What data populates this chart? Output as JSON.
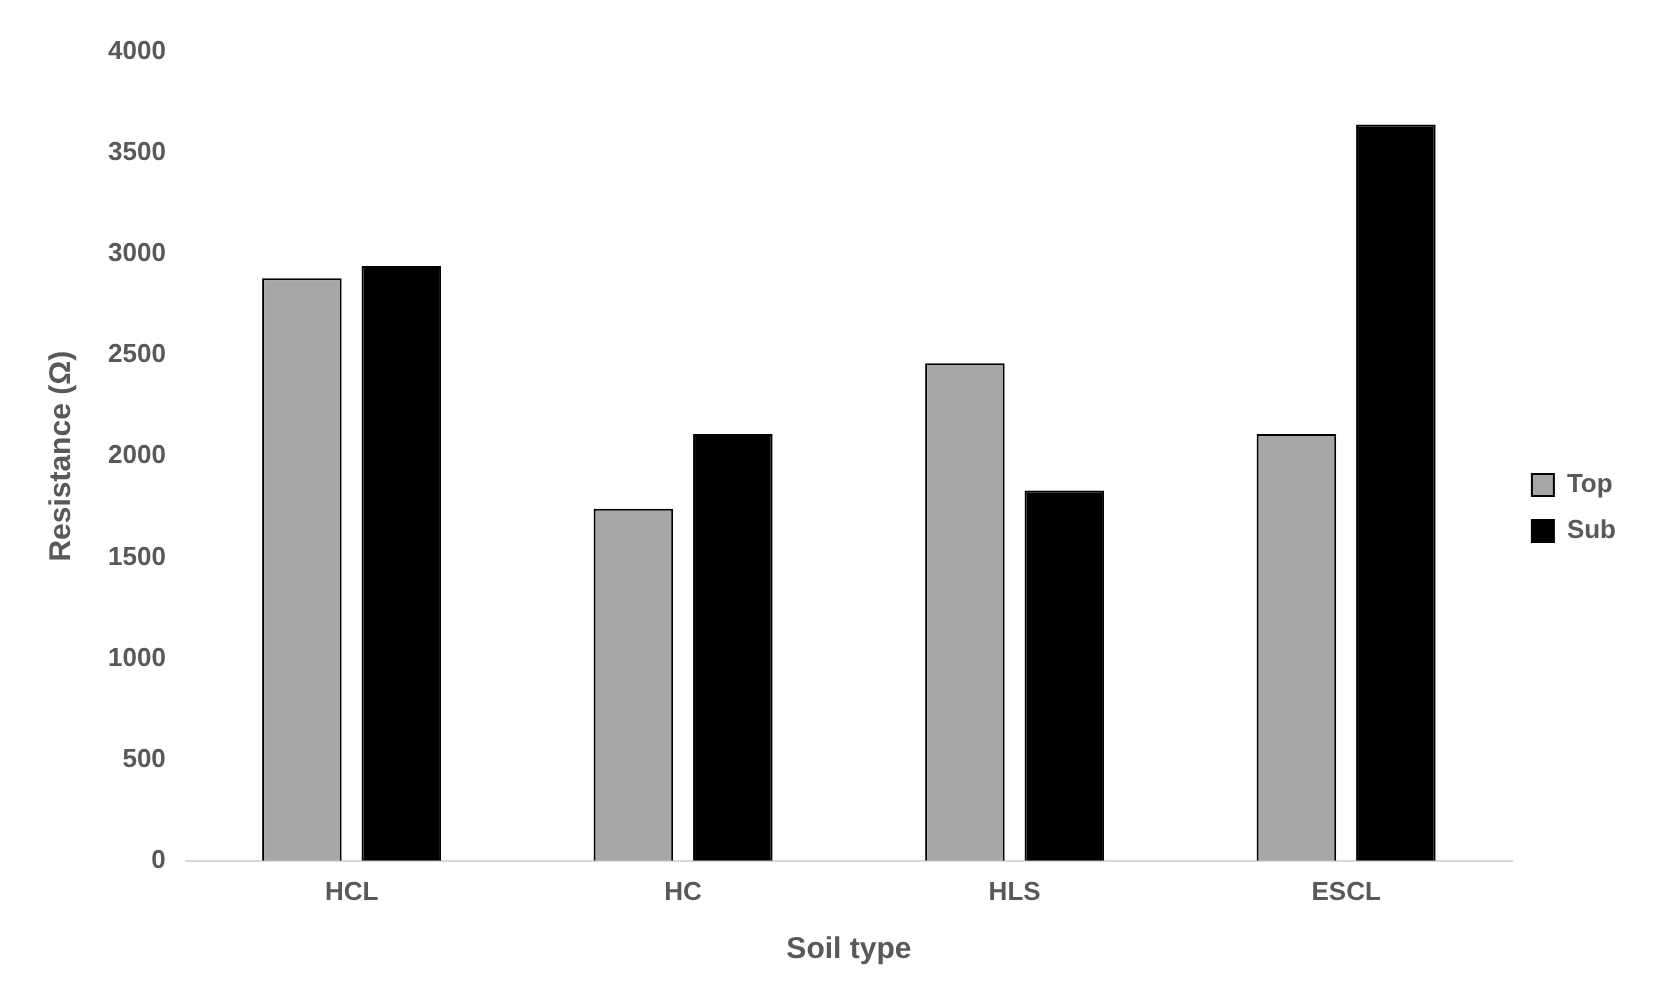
{
  "chart_data": {
    "type": "bar",
    "xlabel": "Soil type",
    "ylabel": "Resistance (Ω)",
    "categories": [
      "HCL",
      "HC",
      "HLS",
      "ESCL"
    ],
    "series": [
      {
        "name": "Top",
        "color": "#a6a6a6",
        "values": [
          2880,
          1740,
          2460,
          2110
        ]
      },
      {
        "name": "Sub",
        "color": "#000000",
        "values": [
          2940,
          2110,
          1830,
          3640
        ]
      }
    ],
    "ylim": [
      0,
      4000
    ],
    "yticks": [
      0,
      500,
      1000,
      1500,
      2000,
      2500,
      3000,
      3500,
      4000
    ],
    "grid": false,
    "legend": "right"
  }
}
